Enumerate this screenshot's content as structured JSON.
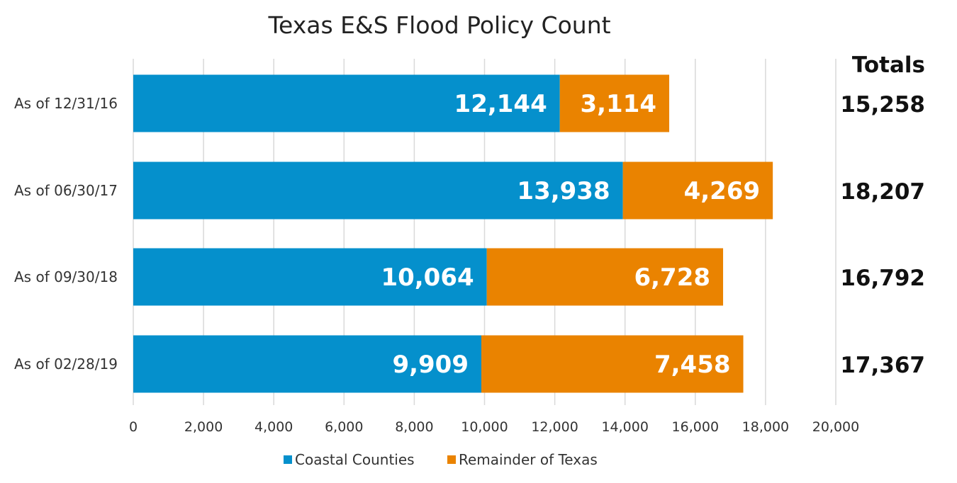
{
  "chart_data": {
    "type": "bar",
    "orientation": "horizontal",
    "stacked": true,
    "title": "Texas E&S Flood Policy Count",
    "categories": [
      "As of 12/31/16",
      "As of 06/30/17",
      "As of 09/30/18",
      "As of 02/28/19"
    ],
    "series": [
      {
        "name": "Coastal Counties",
        "color": "#0590cc",
        "values": [
          12144,
          13938,
          10064,
          9909
        ],
        "labels": [
          "12,144",
          "13,938",
          "10,064",
          "9,909"
        ]
      },
      {
        "name": "Remainder of Texas",
        "color": "#ea8300",
        "values": [
          3114,
          4269,
          6728,
          7458
        ],
        "labels": [
          "3,114",
          "4,269",
          "6,728",
          "7,458"
        ]
      }
    ],
    "totals_header": "Totals",
    "totals": [
      "15,258",
      "18,207",
      "16,792",
      "17,367"
    ],
    "xlim": [
      0,
      20000
    ],
    "x_ticks": [
      0,
      2000,
      4000,
      6000,
      8000,
      10000,
      12000,
      14000,
      16000,
      18000,
      20000
    ],
    "x_tick_labels": [
      "0",
      "2,000",
      "4,000",
      "6,000",
      "8,000",
      "10,000",
      "12,000",
      "14,000",
      "16,000",
      "18,000",
      "20,000"
    ],
    "grid": true,
    "legend_position": "bottom-center"
  }
}
